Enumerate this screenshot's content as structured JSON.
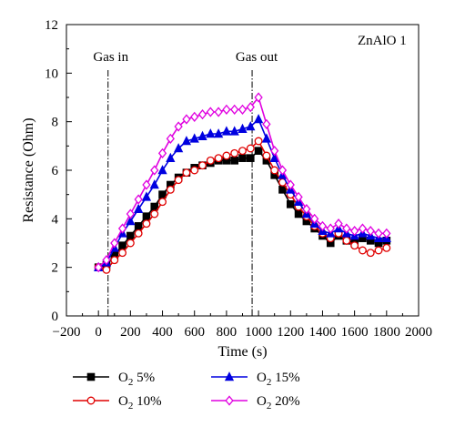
{
  "chart_data": {
    "type": "line",
    "xlabel": "Time (s)",
    "ylabel": "Resistance (Ohm)",
    "xlim": [
      -200,
      2000
    ],
    "ylim": [
      0,
      12
    ],
    "xticks": [
      -200,
      0,
      200,
      400,
      600,
      800,
      1000,
      1200,
      1400,
      1600,
      1800,
      2000
    ],
    "yticks": [
      0,
      2,
      4,
      6,
      8,
      10,
      12
    ],
    "grid": false,
    "legend_position": "bottom",
    "annotations": [
      {
        "text": "ZnAlO 1"
      },
      {
        "text": "Gas in",
        "x": 60
      },
      {
        "text": "Gas out",
        "x": 960
      }
    ],
    "series": [
      {
        "name": "5%",
        "color": "#000000",
        "marker": "square-filled",
        "x": [
          0,
          50,
          100,
          150,
          200,
          250,
          300,
          350,
          400,
          450,
          500,
          550,
          600,
          650,
          700,
          750,
          800,
          850,
          900,
          950,
          1000,
          1050,
          1100,
          1150,
          1200,
          1250,
          1300,
          1350,
          1400,
          1450,
          1500,
          1550,
          1600,
          1650,
          1700,
          1750,
          1800
        ],
        "y": [
          2.0,
          2.1,
          2.5,
          2.9,
          3.3,
          3.7,
          4.1,
          4.5,
          5.0,
          5.4,
          5.7,
          5.9,
          6.1,
          6.2,
          6.3,
          6.4,
          6.4,
          6.4,
          6.5,
          6.5,
          6.8,
          6.4,
          5.8,
          5.2,
          4.6,
          4.2,
          3.9,
          3.6,
          3.3,
          3.0,
          3.3,
          3.1,
          3.0,
          3.2,
          3.1,
          3.0,
          3.1
        ]
      },
      {
        "name": "10%",
        "color": "#e00000",
        "marker": "circle-open",
        "x": [
          0,
          50,
          100,
          150,
          200,
          250,
          300,
          350,
          400,
          450,
          500,
          550,
          600,
          650,
          700,
          750,
          800,
          850,
          900,
          950,
          1000,
          1050,
          1100,
          1150,
          1200,
          1250,
          1300,
          1350,
          1400,
          1450,
          1500,
          1550,
          1600,
          1650,
          1700,
          1750,
          1800
        ],
        "y": [
          2.0,
          1.9,
          2.3,
          2.6,
          3.0,
          3.4,
          3.8,
          4.2,
          4.7,
          5.2,
          5.6,
          5.9,
          6.0,
          6.2,
          6.4,
          6.5,
          6.6,
          6.7,
          6.8,
          6.9,
          7.2,
          6.6,
          6.0,
          5.5,
          5.0,
          4.5,
          4.1,
          3.7,
          3.4,
          3.2,
          3.4,
          3.1,
          2.9,
          2.7,
          2.6,
          2.7,
          2.8
        ]
      },
      {
        "name": "15%",
        "color": "#0000e0",
        "marker": "triangle-filled",
        "x": [
          0,
          50,
          100,
          150,
          200,
          250,
          300,
          350,
          400,
          450,
          500,
          550,
          600,
          650,
          700,
          750,
          800,
          850,
          900,
          950,
          1000,
          1050,
          1100,
          1150,
          1200,
          1250,
          1300,
          1350,
          1400,
          1450,
          1500,
          1550,
          1600,
          1650,
          1700,
          1750,
          1800
        ],
        "y": [
          2.0,
          2.2,
          2.8,
          3.4,
          3.9,
          4.4,
          4.9,
          5.4,
          6.0,
          6.5,
          6.9,
          7.2,
          7.3,
          7.4,
          7.5,
          7.5,
          7.6,
          7.6,
          7.7,
          7.8,
          8.1,
          7.3,
          6.5,
          5.8,
          5.2,
          4.7,
          4.2,
          3.8,
          3.5,
          3.4,
          3.6,
          3.4,
          3.3,
          3.4,
          3.3,
          3.2,
          3.2
        ]
      },
      {
        "name": "20%",
        "color": "#e000e0",
        "marker": "diamond-open",
        "x": [
          0,
          50,
          100,
          150,
          200,
          250,
          300,
          350,
          400,
          450,
          500,
          550,
          600,
          650,
          700,
          750,
          800,
          850,
          900,
          950,
          1000,
          1050,
          1100,
          1150,
          1200,
          1250,
          1300,
          1350,
          1400,
          1450,
          1500,
          1550,
          1600,
          1650,
          1700,
          1750,
          1800
        ],
        "y": [
          2.0,
          2.3,
          3.0,
          3.6,
          4.2,
          4.8,
          5.4,
          6.0,
          6.7,
          7.3,
          7.8,
          8.1,
          8.2,
          8.3,
          8.4,
          8.4,
          8.5,
          8.5,
          8.5,
          8.6,
          9.0,
          7.9,
          6.8,
          6.0,
          5.4,
          4.9,
          4.4,
          4.0,
          3.7,
          3.6,
          3.8,
          3.6,
          3.5,
          3.6,
          3.5,
          3.4,
          3.4
        ]
      }
    ]
  }
}
